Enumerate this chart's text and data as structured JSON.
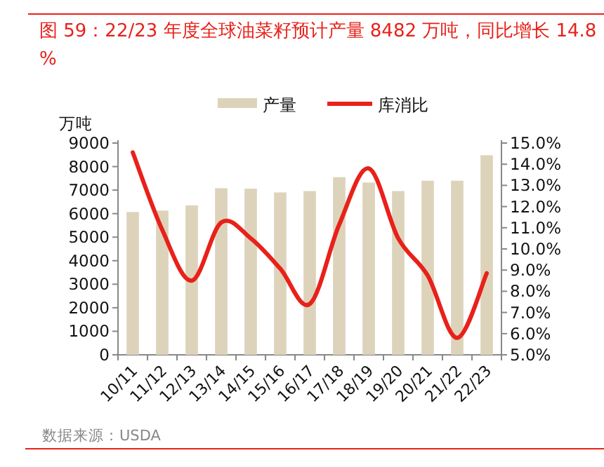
{
  "chart_data": {
    "type": "bar",
    "title": "图 59：22/23 年度全球油菜籽预计产量 8482 万吨，同比增长 14.8%",
    "ylabel": "万吨",
    "legend": "top",
    "grid": false,
    "categories": [
      "10/11",
      "11/12",
      "12/13",
      "13/14",
      "14/15",
      "15/16",
      "16/17",
      "17/18",
      "18/19",
      "19/20",
      "20/21",
      "21/22",
      "22/23"
    ],
    "series": [
      {
        "name": "产量",
        "color": "#ddd3bb",
        "values": [
          6070,
          6130,
          6350,
          7080,
          7060,
          6900,
          6960,
          7550,
          7320,
          6960,
          7400,
          7400,
          8482
        ]
      },
      {
        "name": "库消比",
        "type": "line",
        "axis": "y2",
        "color": "#e8211a",
        "values": [
          14.56,
          10.9,
          8.5,
          11.25,
          10.5,
          9.07,
          7.4,
          11.15,
          13.8,
          10.5,
          8.74,
          5.8,
          8.85
        ]
      }
    ],
    "ylim": [
      0,
      9000
    ],
    "yticks": [
      0,
      1000,
      2000,
      3000,
      4000,
      5000,
      6000,
      7000,
      8000,
      9000
    ],
    "y2lim": [
      5,
      15
    ],
    "y2ticks": [
      {
        "value": 5,
        "label": "5.0%"
      },
      {
        "value": 6,
        "label": "6.0%"
      },
      {
        "value": 7,
        "label": "7.0%"
      },
      {
        "value": 8,
        "label": "8.0%"
      },
      {
        "value": 9,
        "label": "9.0%"
      },
      {
        "value": 10,
        "label": "10.0%"
      },
      {
        "value": 11,
        "label": "11.0%"
      },
      {
        "value": 12,
        "label": "12.0%"
      },
      {
        "value": 13,
        "label": "13.0%"
      },
      {
        "value": 14,
        "label": "14.0%"
      },
      {
        "value": 15,
        "label": "15.0%"
      }
    ],
    "annotations": [
      "数据来源：USDA"
    ]
  }
}
